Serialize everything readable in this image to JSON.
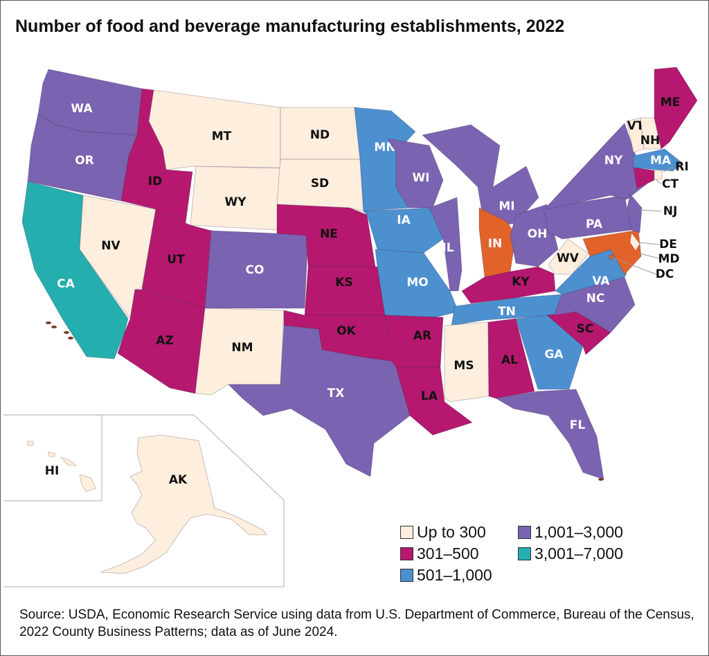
{
  "title": "Number of food and beverage manufacturing establishments, 2022",
  "colors": {
    "up_to_300": "#fdeedd",
    "301_500": "#b5186e",
    "501_1000": "#4c90d0",
    "1001_3000": "#7a63b0",
    "3001_7000": "#24aeae",
    "other": "#e2632a",
    "islands": "#7a3b2a"
  },
  "legend": [
    {
      "key": "up_to_300",
      "label": "Up to 300"
    },
    {
      "key": "1001_3000",
      "label": "1,001–3,000"
    },
    {
      "key": "301_500",
      "label": "301–500"
    },
    {
      "key": "3001_7000",
      "label": "3,001–7,000"
    },
    {
      "key": "501_1000",
      "label": "501–1,000"
    }
  ],
  "states": [
    {
      "abbr": "WA",
      "cat": "1001_3000"
    },
    {
      "abbr": "OR",
      "cat": "1001_3000"
    },
    {
      "abbr": "CA",
      "cat": "3001_7000"
    },
    {
      "abbr": "NV",
      "cat": "up_to_300"
    },
    {
      "abbr": "ID",
      "cat": "301_500"
    },
    {
      "abbr": "MT",
      "cat": "up_to_300"
    },
    {
      "abbr": "WY",
      "cat": "up_to_300"
    },
    {
      "abbr": "UT",
      "cat": "301_500"
    },
    {
      "abbr": "AZ",
      "cat": "301_500"
    },
    {
      "abbr": "CO",
      "cat": "1001_3000"
    },
    {
      "abbr": "NM",
      "cat": "up_to_300"
    },
    {
      "abbr": "ND",
      "cat": "up_to_300"
    },
    {
      "abbr": "SD",
      "cat": "up_to_300"
    },
    {
      "abbr": "NE",
      "cat": "301_500"
    },
    {
      "abbr": "KS",
      "cat": "301_500"
    },
    {
      "abbr": "OK",
      "cat": "301_500"
    },
    {
      "abbr": "TX",
      "cat": "1001_3000"
    },
    {
      "abbr": "MN",
      "cat": "501_1000"
    },
    {
      "abbr": "IA",
      "cat": "501_1000"
    },
    {
      "abbr": "MO",
      "cat": "501_1000"
    },
    {
      "abbr": "AR",
      "cat": "301_500"
    },
    {
      "abbr": "LA",
      "cat": "301_500"
    },
    {
      "abbr": "WI",
      "cat": "1001_3000"
    },
    {
      "abbr": "IL",
      "cat": "1001_3000"
    },
    {
      "abbr": "MI",
      "cat": "1001_3000"
    },
    {
      "abbr": "IN",
      "cat": "other"
    },
    {
      "abbr": "OH",
      "cat": "1001_3000"
    },
    {
      "abbr": "KY",
      "cat": "301_500"
    },
    {
      "abbr": "TN",
      "cat": "501_1000"
    },
    {
      "abbr": "MS",
      "cat": "up_to_300"
    },
    {
      "abbr": "AL",
      "cat": "301_500"
    },
    {
      "abbr": "GA",
      "cat": "501_1000"
    },
    {
      "abbr": "FL",
      "cat": "1001_3000"
    },
    {
      "abbr": "SC",
      "cat": "301_500"
    },
    {
      "abbr": "NC",
      "cat": "1001_3000"
    },
    {
      "abbr": "VA",
      "cat": "501_1000"
    },
    {
      "abbr": "WV",
      "cat": "up_to_300"
    },
    {
      "abbr": "PA",
      "cat": "1001_3000"
    },
    {
      "abbr": "NY",
      "cat": "1001_3000"
    },
    {
      "abbr": "MD",
      "cat": "other"
    },
    {
      "abbr": "DC",
      "cat": "other"
    },
    {
      "abbr": "DE",
      "cat": "up_to_300"
    },
    {
      "abbr": "NJ",
      "cat": "1001_3000"
    },
    {
      "abbr": "VT",
      "cat": "up_to_300"
    },
    {
      "abbr": "NH",
      "cat": "up_to_300"
    },
    {
      "abbr": "ME",
      "cat": "301_500"
    },
    {
      "abbr": "MA",
      "cat": "501_1000"
    },
    {
      "abbr": "CT",
      "cat": "301_500"
    },
    {
      "abbr": "RI",
      "cat": "up_to_300"
    },
    {
      "abbr": "AK",
      "cat": "up_to_300"
    },
    {
      "abbr": "HI",
      "cat": "up_to_300"
    }
  ],
  "source": "Source: USDA, Economic Research Service using data from U.S. Department of Commerce, Bureau of the Census, 2022 County Business Patterns; data as of June 2024."
}
